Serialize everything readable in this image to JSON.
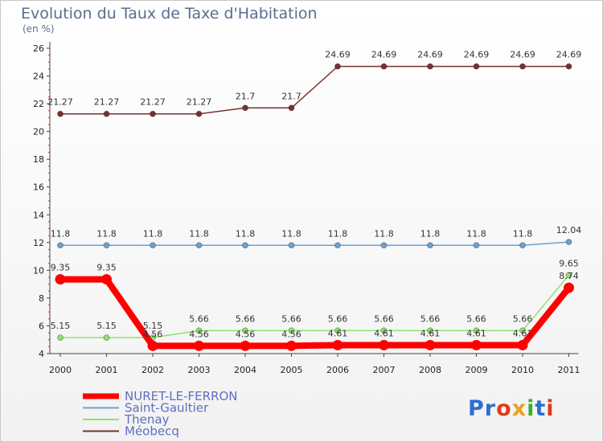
{
  "chart_data": {
    "type": "line",
    "title": "Evolution du Taux de Taxe d'Habitation",
    "subtitle": "(en %)",
    "xlabel": "",
    "ylabel": "",
    "x": [
      "2000",
      "2001",
      "2002",
      "2003",
      "2004",
      "2005",
      "2006",
      "2007",
      "2008",
      "2009",
      "2010",
      "2011"
    ],
    "ylim": [
      4,
      26
    ],
    "yticks": [
      4,
      6,
      8,
      10,
      12,
      14,
      16,
      18,
      20,
      22,
      24,
      26
    ],
    "grid": false,
    "legend_position": "bottom-left",
    "series": [
      {
        "name": "NURET-LE-FERRON",
        "color": "#ff0000",
        "values": [
          9.35,
          9.35,
          4.56,
          4.56,
          4.56,
          4.56,
          4.61,
          4.61,
          4.61,
          4.61,
          4.61,
          8.74
        ],
        "labels": [
          "9.35",
          "9.35",
          "4.56",
          "4.56",
          "4.56",
          "4.56",
          "4.61",
          "4.61",
          "4.61",
          "4.61",
          "4.61",
          "8.74"
        ]
      },
      {
        "name": "Saint-Gaultier",
        "color": "#6fa0cc",
        "values": [
          11.8,
          11.8,
          11.8,
          11.8,
          11.8,
          11.8,
          11.8,
          11.8,
          11.8,
          11.8,
          11.8,
          12.04
        ],
        "labels": [
          "11.8",
          "11.8",
          "11.8",
          "11.8",
          "11.8",
          "11.8",
          "11.8",
          "11.8",
          "11.8",
          "11.8",
          "11.8",
          "12.04"
        ]
      },
      {
        "name": "Thenay",
        "color": "#90e070",
        "values": [
          5.15,
          5.15,
          5.15,
          5.66,
          5.66,
          5.66,
          5.66,
          5.66,
          5.66,
          5.66,
          5.66,
          9.65
        ],
        "labels": [
          "5.15",
          "5.15",
          "5.15",
          "5.66",
          "5.66",
          "5.66",
          "5.66",
          "5.66",
          "5.66",
          "5.66",
          "5.66",
          "9.65"
        ]
      },
      {
        "name": "Méobecq",
        "color": "#7a3030",
        "values": [
          21.27,
          21.27,
          21.27,
          21.27,
          21.7,
          21.7,
          24.69,
          24.69,
          24.69,
          24.69,
          24.69,
          24.69
        ],
        "labels": [
          "21.27",
          "21.27",
          "21.27",
          "21.27",
          "21.7",
          "21.7",
          "24.69",
          "24.69",
          "24.69",
          "24.69",
          "24.69",
          "24.69"
        ]
      }
    ]
  },
  "branding": {
    "logo_text": "Proxiti",
    "letter_colors": [
      "#2c6fd1",
      "#2c6fd1",
      "#e03a1c",
      "#f0a020",
      "#38b02c",
      "#2c6fd1",
      "#e03a1c"
    ]
  }
}
